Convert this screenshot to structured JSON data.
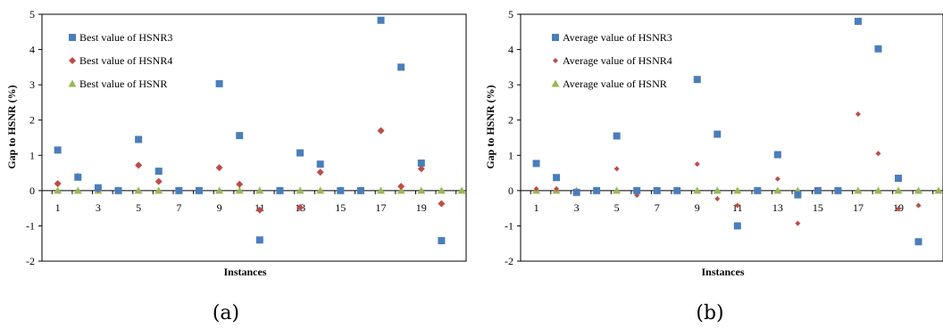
{
  "chart_data": [
    {
      "type": "scatter",
      "caption": "(a)",
      "xlabel": "Instances",
      "ylabel": "Gap to HSNR (%)",
      "ylim": [
        -2,
        5
      ],
      "yticks": [
        -2,
        -1,
        0,
        1,
        2,
        3,
        4,
        5
      ],
      "xlim": [
        1,
        21
      ],
      "xticks": [
        1,
        3,
        5,
        7,
        9,
        11,
        13,
        15,
        17,
        19
      ],
      "legend_position": "top-left",
      "grid": false,
      "x": [
        1,
        2,
        3,
        4,
        5,
        6,
        7,
        8,
        9,
        10,
        11,
        12,
        13,
        14,
        15,
        16,
        17,
        18,
        19,
        20,
        21
      ],
      "series": [
        {
          "name": "Best value of HSNR3",
          "marker": "square",
          "color": "#4a7ebb",
          "values": [
            1.15,
            0.38,
            0.08,
            0.0,
            1.45,
            0.55,
            0.0,
            0.0,
            3.03,
            1.56,
            -1.4,
            0.0,
            1.07,
            0.75,
            0.0,
            0.0,
            4.83,
            3.5,
            0.78,
            -1.42,
            null
          ]
        },
        {
          "name": "Best value of HSNR4",
          "marker": "diamond",
          "color": "#be4b48",
          "values": [
            0.2,
            0.4,
            0.04,
            0.0,
            0.72,
            0.26,
            0.0,
            0.0,
            0.65,
            0.18,
            -0.55,
            0.0,
            -0.48,
            0.52,
            0.0,
            0.0,
            1.7,
            0.12,
            0.62,
            -0.37,
            null
          ]
        },
        {
          "name": "Best value of HSNR",
          "marker": "triangle",
          "color": "#98b954",
          "values": [
            0,
            0,
            0,
            0,
            0,
            0,
            0,
            0,
            0,
            0,
            0,
            0,
            0,
            0,
            0,
            0,
            0,
            0,
            0,
            0,
            0
          ]
        }
      ]
    },
    {
      "type": "scatter",
      "caption": "(b)",
      "xlabel": "Instances",
      "ylabel": "Gap to HSNR (%)",
      "ylim": [
        -2,
        5
      ],
      "yticks": [
        -2,
        -1,
        0,
        1,
        2,
        3,
        4,
        5
      ],
      "xlim": [
        1,
        21
      ],
      "xticks": [
        1,
        3,
        5,
        7,
        9,
        11,
        13,
        15,
        17,
        19
      ],
      "legend_position": "top-left",
      "grid": false,
      "x": [
        1,
        2,
        3,
        4,
        5,
        6,
        7,
        8,
        9,
        10,
        11,
        12,
        13,
        14,
        15,
        16,
        17,
        18,
        19,
        20,
        21
      ],
      "series": [
        {
          "name": "Average value of HSNR3",
          "marker": "square",
          "color": "#4a7ebb",
          "values": [
            0.77,
            0.37,
            -0.05,
            0.0,
            1.55,
            0.0,
            0.0,
            0.0,
            3.15,
            1.6,
            -1.0,
            0.0,
            1.02,
            -0.12,
            0.0,
            0.0,
            4.8,
            4.02,
            0.35,
            -1.45,
            null
          ]
        },
        {
          "name": "Average value of HSNR4",
          "marker": "diamond-small",
          "color": "#be4b48",
          "values": [
            0.05,
            0.05,
            -0.04,
            0.0,
            0.62,
            -0.13,
            0.0,
            0.0,
            0.75,
            -0.23,
            -0.42,
            0.0,
            0.33,
            -0.93,
            0.0,
            0.0,
            2.17,
            1.05,
            -0.52,
            -0.42,
            null
          ]
        },
        {
          "name": "Average value of HSNR",
          "marker": "triangle",
          "color": "#98b954",
          "values": [
            0,
            0,
            0,
            0,
            0,
            0,
            0,
            0,
            0,
            0,
            0,
            0,
            0,
            0,
            0,
            0,
            0,
            0,
            0,
            0,
            0
          ]
        }
      ]
    }
  ]
}
